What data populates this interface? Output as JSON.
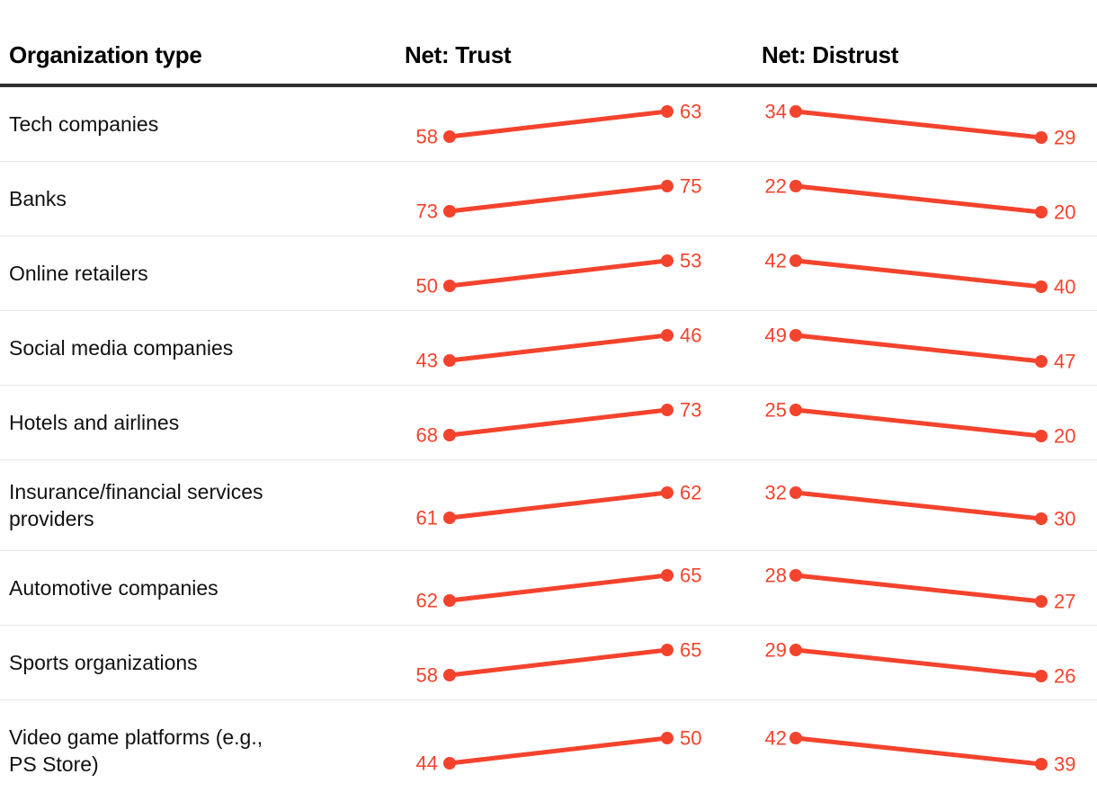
{
  "header": {
    "organization_type": "Organization type",
    "net_trust": "Net: Trust",
    "net_distrust": "Net: Distrust"
  },
  "colors": {
    "accent": "#f4432d",
    "heading_text": "#000000",
    "row_text": "#111111",
    "top_rule": "#2f2f2f",
    "row_separator": "#e7e7e7",
    "background": "#ffffff"
  },
  "chart_data": {
    "type": "line",
    "subtype": "slopegraph-table",
    "title": "",
    "columns": [
      "Organization type",
      "Net: Trust",
      "Net: Distrust"
    ],
    "categories": [
      "Tech companies",
      "Banks",
      "Online retailers",
      "Social media companies",
      "Hotels and airlines",
      "Insurance/financial services providers",
      "Automotive companies",
      "Sports organizations",
      "Video game platforms (e.g., PS Store)"
    ],
    "series": [
      {
        "name": "Net: Trust",
        "direction": "up",
        "values": [
          [
            58,
            63
          ],
          [
            73,
            75
          ],
          [
            50,
            53
          ],
          [
            43,
            46
          ],
          [
            68,
            73
          ],
          [
            61,
            62
          ],
          [
            62,
            65
          ],
          [
            58,
            65
          ],
          [
            44,
            50
          ]
        ]
      },
      {
        "name": "Net: Distrust",
        "direction": "down",
        "values": [
          [
            34,
            29
          ],
          [
            22,
            20
          ],
          [
            42,
            40
          ],
          [
            49,
            47
          ],
          [
            25,
            20
          ],
          [
            32,
            30
          ],
          [
            28,
            27
          ],
          [
            29,
            26
          ],
          [
            42,
            39
          ]
        ]
      }
    ],
    "legend": "none",
    "grid": "row-separators-only",
    "value_range_implied": [
      0,
      100
    ]
  },
  "rows": [
    {
      "label": "Tech companies",
      "trust": [
        58,
        63
      ],
      "distrust": [
        34,
        29
      ]
    },
    {
      "label": "Banks",
      "trust": [
        73,
        75
      ],
      "distrust": [
        22,
        20
      ]
    },
    {
      "label": "Online retailers",
      "trust": [
        50,
        53
      ],
      "distrust": [
        42,
        40
      ]
    },
    {
      "label": "Social media companies",
      "trust": [
        43,
        46
      ],
      "distrust": [
        49,
        47
      ]
    },
    {
      "label": "Hotels and airlines",
      "trust": [
        68,
        73
      ],
      "distrust": [
        25,
        20
      ]
    },
    {
      "label": "Insurance/financial services\nproviders",
      "trust": [
        61,
        62
      ],
      "distrust": [
        32,
        30
      ]
    },
    {
      "label": "Automotive companies",
      "trust": [
        62,
        65
      ],
      "distrust": [
        28,
        27
      ]
    },
    {
      "label": "Sports organizations",
      "trust": [
        58,
        65
      ],
      "distrust": [
        29,
        26
      ]
    },
    {
      "label": "Video game platforms (e.g.,\nPS Store)",
      "trust": [
        44,
        50
      ],
      "distrust": [
        42,
        39
      ]
    }
  ]
}
